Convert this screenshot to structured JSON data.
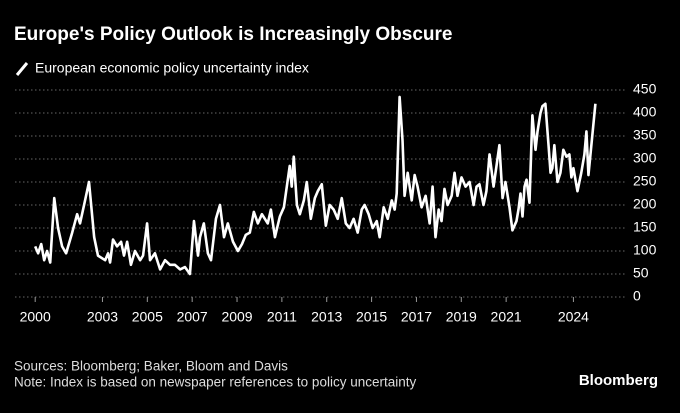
{
  "chart_data": {
    "type": "line",
    "title": "Europe's Policy Outlook is Increasingly Obscure",
    "footer": {
      "sources": "Sources: Bloomberg; Baker, Bloom and Davis",
      "note": "Note: Index is based on newspaper references to policy uncertainty",
      "brand": "Bloomberg"
    },
    "x": [
      2000,
      2000.13,
      2000.27,
      2000.4,
      2000.53,
      2000.67,
      2000.85,
      2001.02,
      2001.2,
      2001.38,
      2001.65,
      2001.87,
      2002,
      2002.18,
      2002.4,
      2002.63,
      2002.8,
      2003.12,
      2003.25,
      2003.34,
      2003.47,
      2003.65,
      2003.83,
      2003.96,
      2004.1,
      2004.27,
      2004.45,
      2004.68,
      2004.81,
      2004.99,
      2005.12,
      2005.34,
      2005.57,
      2005.79,
      2006.01,
      2006.23,
      2006.46,
      2006.68,
      2006.9,
      2007.08,
      2007.26,
      2007.35,
      2007.52,
      2007.7,
      2007.84,
      2008.06,
      2008.24,
      2008.42,
      2008.59,
      2008.82,
      2009.04,
      2009.22,
      2009.39,
      2009.57,
      2009.75,
      2009.93,
      2010.11,
      2010.24,
      2010.37,
      2010.51,
      2010.69,
      2010.91,
      2011.09,
      2011.22,
      2011.35,
      2011.44,
      2011.53,
      2011.67,
      2011.8,
      2011.98,
      2012.11,
      2012.29,
      2012.47,
      2012.6,
      2012.78,
      2012.96,
      2013.13,
      2013.31,
      2013.49,
      2013.67,
      2013.85,
      2014.02,
      2014.2,
      2014.38,
      2014.56,
      2014.69,
      2014.87,
      2015.05,
      2015.23,
      2015.36,
      2015.54,
      2015.72,
      2015.9,
      2016.03,
      2016.12,
      2016.25,
      2016.38,
      2016.47,
      2016.61,
      2016.79,
      2016.92,
      2017.05,
      2017.23,
      2017.41,
      2017.59,
      2017.72,
      2017.85,
      2017.99,
      2018.12,
      2018.25,
      2018.39,
      2018.57,
      2018.7,
      2018.83,
      2019.01,
      2019.19,
      2019.37,
      2019.55,
      2019.68,
      2019.81,
      2019.99,
      2020.12,
      2020.26,
      2020.44,
      2020.7,
      2020.84,
      2020.97,
      2021.15,
      2021.28,
      2021.46,
      2021.55,
      2021.64,
      2021.73,
      2021.82,
      2021.91,
      2022.04,
      2022.17,
      2022.31,
      2022.4,
      2022.53,
      2022.62,
      2022.75,
      2022.89,
      2022.98,
      2023.06,
      2023.15,
      2023.29,
      2023.42,
      2023.55,
      2023.69,
      2023.82,
      2023.91,
      2024,
      2024.18,
      2024.35,
      2024.49,
      2024.58,
      2024.67,
      2024.8,
      2024.98
    ],
    "series": [
      {
        "name": "European economic policy uncertainty index",
        "color": "#ffffff",
        "values": [
          110,
          95,
          115,
          80,
          100,
          75,
          215,
          150,
          110,
          95,
          140,
          180,
          160,
          200,
          250,
          130,
          90,
          80,
          95,
          75,
          125,
          110,
          120,
          90,
          120,
          70,
          100,
          80,
          90,
          160,
          80,
          95,
          60,
          80,
          70,
          70,
          60,
          65,
          50,
          165,
          90,
          130,
          160,
          95,
          80,
          170,
          200,
          130,
          160,
          120,
          100,
          115,
          135,
          140,
          185,
          160,
          180,
          170,
          160,
          190,
          130,
          175,
          195,
          240,
          285,
          240,
          305,
          200,
          180,
          210,
          250,
          170,
          215,
          230,
          245,
          155,
          200,
          190,
          170,
          215,
          160,
          150,
          170,
          140,
          190,
          200,
          180,
          150,
          165,
          130,
          195,
          170,
          210,
          190,
          225,
          435,
          340,
          220,
          270,
          210,
          265,
          240,
          195,
          220,
          160,
          240,
          130,
          190,
          165,
          235,
          200,
          220,
          270,
          220,
          260,
          240,
          250,
          200,
          240,
          245,
          200,
          230,
          310,
          240,
          330,
          215,
          250,
          195,
          145,
          165,
          190,
          225,
          175,
          240,
          255,
          205,
          395,
          320,
          360,
          400,
          415,
          420,
          330,
          270,
          280,
          330,
          250,
          270,
          320,
          305,
          310,
          260,
          280,
          230,
          270,
          310,
          360,
          265,
          330,
          420
        ]
      }
    ],
    "xlim": [
      1999.1,
      2026.3
    ],
    "xticks": [
      2000,
      2003,
      2005,
      2007,
      2009,
      2011,
      2013,
      2015,
      2017,
      2019,
      2021,
      2024
    ],
    "ylim": [
      0,
      450
    ],
    "yticks": [
      0,
      50,
      100,
      150,
      200,
      250,
      300,
      350,
      400,
      450
    ],
    "grid": true
  }
}
